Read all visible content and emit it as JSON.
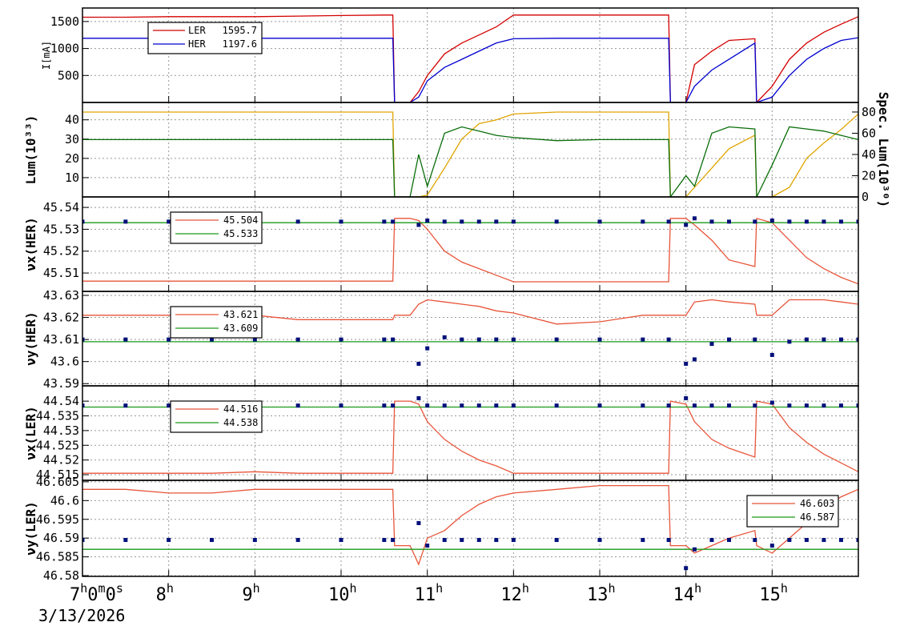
{
  "chart_data": [
    {
      "type": "line",
      "ylabel": "I[mA]",
      "legend": "upper left",
      "grid": true,
      "x": [
        7,
        7.5,
        8,
        8.5,
        9,
        9.5,
        10,
        10.5,
        10.6,
        10.62,
        10.8,
        10.9,
        11,
        11.2,
        11.4,
        11.6,
        11.8,
        12,
        12.5,
        13,
        13.5,
        13.8,
        13.82,
        14,
        14.1,
        14.3,
        14.5,
        14.8,
        14.82,
        15,
        15.2,
        15.4,
        15.6,
        15.8,
        16
      ],
      "xlim": [
        7,
        16
      ],
      "xticks": [
        7,
        8,
        9,
        10,
        11,
        12,
        13,
        14,
        15
      ],
      "ylim": [
        0,
        1750
      ],
      "yticks": [
        500,
        1000,
        1500
      ],
      "series": [
        {
          "name": "LER",
          "legend_value": 1595.7,
          "color": "#d40000",
          "style": "line",
          "values": [
            1580,
            1580,
            1590,
            1590,
            1590,
            1600,
            1610,
            1620,
            1620,
            0,
            0,
            200,
            500,
            900,
            1100,
            1250,
            1400,
            1620,
            1620,
            1620,
            1620,
            1620,
            0,
            0,
            700,
            950,
            1150,
            1180,
            0,
            300,
            800,
            1100,
            1300,
            1450,
            1590
          ]
        },
        {
          "name": "HER",
          "legend_value": 1197.6,
          "color": "#0000d0",
          "style": "line",
          "values": [
            1190,
            1190,
            1190,
            1190,
            1190,
            1190,
            1190,
            1190,
            1190,
            0,
            0,
            100,
            400,
            650,
            800,
            950,
            1100,
            1180,
            1190,
            1190,
            1190,
            1190,
            0,
            0,
            300,
            600,
            800,
            1100,
            0,
            100,
            500,
            800,
            1000,
            1150,
            1200
          ]
        }
      ]
    },
    {
      "type": "line",
      "ylabel": "Lum(10³³)",
      "y2label": "Spec. Lum(10³⁰)",
      "grid": true,
      "x": [
        7,
        7.5,
        8,
        8.5,
        9,
        9.5,
        10,
        10.5,
        10.6,
        10.62,
        10.8,
        10.9,
        11,
        11.2,
        11.4,
        11.6,
        11.8,
        12,
        12.5,
        13,
        13.5,
        13.8,
        13.82,
        14,
        14.1,
        14.3,
        14.5,
        14.8,
        14.82,
        15,
        15.2,
        15.4,
        15.6,
        15.8,
        16
      ],
      "xlim": [
        7,
        16
      ],
      "xticks": [
        7,
        8,
        9,
        10,
        11,
        12,
        13,
        14,
        15
      ],
      "ylim": [
        0,
        49
      ],
      "yticks": [
        10,
        20,
        30,
        40
      ],
      "y2lim": [
        0,
        89
      ],
      "y2ticks": [
        0,
        20,
        40,
        60,
        80
      ],
      "series": [
        {
          "color": "#e0a400",
          "style": "line",
          "values": [
            44,
            44,
            44,
            44,
            44,
            44,
            44,
            44,
            44,
            0,
            0,
            0,
            1,
            15,
            30,
            38,
            40,
            43,
            44,
            44,
            44,
            44,
            0,
            0,
            5,
            15,
            25,
            32,
            0,
            0,
            5,
            20,
            28,
            35,
            43
          ]
        },
        {
          "color": "#0a6e0a",
          "style": "line",
          "axis": "y2",
          "values": [
            54,
            54,
            54,
            54,
            54,
            54,
            54,
            54,
            54,
            0,
            0,
            40,
            10,
            60,
            66,
            62,
            58,
            56,
            53,
            54,
            54,
            54,
            0,
            20,
            10,
            60,
            66,
            64,
            0,
            30,
            66,
            64,
            62,
            58,
            54
          ]
        }
      ]
    },
    {
      "type": "line",
      "ylabel": "νx(HER)",
      "legend": "upper left",
      "grid": true,
      "x": [
        7,
        7.5,
        8,
        8.5,
        9,
        9.5,
        10,
        10.5,
        10.6,
        10.62,
        10.8,
        10.9,
        11,
        11.2,
        11.4,
        11.6,
        11.8,
        12,
        12.5,
        13,
        13.5,
        13.8,
        13.82,
        14,
        14.1,
        14.3,
        14.5,
        14.8,
        14.82,
        15,
        15.2,
        15.4,
        15.6,
        15.8,
        16
      ],
      "xlim": [
        7,
        16
      ],
      "xticks": [
        7,
        8,
        9,
        10,
        11,
        12,
        13,
        14,
        15
      ],
      "ylim": [
        45.5016,
        45.5448
      ],
      "yticks": [
        45.51,
        45.52,
        45.53,
        45.54
      ],
      "series": [
        {
          "name": "45.504",
          "color": "#e8553a",
          "style": "line",
          "values": [
            45.5063,
            45.5063,
            45.5063,
            45.5063,
            45.5063,
            45.5063,
            45.5063,
            45.5063,
            45.5063,
            45.535,
            45.535,
            45.534,
            45.53,
            45.52,
            45.515,
            45.512,
            45.509,
            45.506,
            45.506,
            45.506,
            45.506,
            45.506,
            45.535,
            45.535,
            45.532,
            45.525,
            45.516,
            45.513,
            45.535,
            45.533,
            45.525,
            45.517,
            45.512,
            45.508,
            45.505
          ]
        },
        {
          "name": "45.533",
          "color": "#1a9a1a",
          "style": "line",
          "values": [
            45.533,
            45.533,
            45.533,
            45.533,
            45.533,
            45.533,
            45.533,
            45.533,
            45.533,
            45.533,
            45.533,
            45.533,
            45.533,
            45.533,
            45.533,
            45.533,
            45.533,
            45.533,
            45.533,
            45.533,
            45.533,
            45.533,
            45.533,
            45.533,
            45.533,
            45.533,
            45.533,
            45.533,
            45.533,
            45.533,
            45.533,
            45.533,
            45.533,
            45.533,
            45.533
          ]
        },
        {
          "color": "#00107a",
          "style": "points",
          "values": [
            45.5335,
            45.5335,
            45.5335,
            45.5335,
            45.5335,
            45.5335,
            45.5335,
            45.5335,
            45.5335,
            null,
            null,
            45.532,
            45.534,
            45.5335,
            45.5335,
            45.5335,
            45.5335,
            45.5335,
            45.5335,
            45.5335,
            45.5335,
            45.5335,
            null,
            45.532,
            45.535,
            45.5335,
            45.5335,
            45.5335,
            null,
            45.534,
            45.5335,
            45.5335,
            45.5335,
            45.5335,
            45.5335
          ]
        }
      ]
    },
    {
      "type": "line",
      "ylabel": "νy(HER)",
      "legend": "upper left",
      "grid": true,
      "x": [
        7,
        7.5,
        8,
        8.5,
        9,
        9.5,
        10,
        10.5,
        10.6,
        10.62,
        10.8,
        10.9,
        11,
        11.2,
        11.4,
        11.6,
        11.8,
        12,
        12.5,
        13,
        13.5,
        13.8,
        13.82,
        14,
        14.1,
        14.3,
        14.5,
        14.8,
        14.82,
        15,
        15.2,
        15.4,
        15.6,
        15.8,
        16
      ],
      "xlim": [
        7,
        16
      ],
      "xticks": [
        7,
        8,
        9,
        10,
        11,
        12,
        13,
        14,
        15
      ],
      "ylim": [
        43.589,
        43.6318
      ],
      "yticks": [
        43.59,
        43.6,
        43.61,
        43.62,
        43.63
      ],
      "series": [
        {
          "name": "43.621",
          "color": "#e8553a",
          "style": "line",
          "values": [
            43.621,
            43.621,
            43.621,
            43.621,
            43.621,
            43.619,
            43.619,
            43.619,
            43.619,
            43.621,
            43.621,
            43.626,
            43.628,
            43.627,
            43.626,
            43.625,
            43.623,
            43.622,
            43.617,
            43.618,
            43.621,
            43.621,
            43.621,
            43.621,
            43.627,
            43.628,
            43.627,
            43.626,
            43.621,
            43.621,
            43.628,
            43.628,
            43.628,
            43.627,
            43.626
          ]
        },
        {
          "name": "43.609",
          "color": "#1a9a1a",
          "style": "line",
          "values": [
            43.609,
            43.609,
            43.609,
            43.609,
            43.609,
            43.609,
            43.609,
            43.609,
            43.609,
            43.609,
            43.609,
            43.609,
            43.609,
            43.609,
            43.609,
            43.609,
            43.609,
            43.609,
            43.609,
            43.609,
            43.609,
            43.609,
            43.609,
            43.609,
            43.609,
            43.609,
            43.609,
            43.609,
            43.609,
            43.609,
            43.609,
            43.609,
            43.609,
            43.609,
            43.609
          ]
        },
        {
          "color": "#00107a",
          "style": "points",
          "values": [
            43.61,
            43.61,
            43.61,
            43.61,
            43.61,
            43.61,
            43.61,
            43.61,
            43.61,
            null,
            null,
            43.599,
            43.606,
            43.611,
            43.61,
            43.61,
            43.61,
            43.61,
            43.61,
            43.61,
            43.61,
            43.61,
            null,
            43.599,
            43.601,
            43.608,
            43.61,
            43.61,
            null,
            43.603,
            43.609,
            43.61,
            43.61,
            43.61,
            43.61
          ]
        }
      ]
    },
    {
      "type": "line",
      "ylabel": "νx(LER)",
      "legend": "upper left",
      "grid": true,
      "x": [
        7,
        7.5,
        8,
        8.5,
        9,
        9.5,
        10,
        10.5,
        10.6,
        10.62,
        10.8,
        10.9,
        11,
        11.2,
        11.4,
        11.6,
        11.8,
        12,
        12.5,
        13,
        13.5,
        13.8,
        13.82,
        14,
        14.1,
        14.3,
        14.5,
        14.8,
        14.82,
        15,
        15.2,
        15.4,
        15.6,
        15.8,
        16
      ],
      "xlim": [
        7,
        16
      ],
      "xticks": [
        7,
        8,
        9,
        10,
        11,
        12,
        13,
        14,
        15
      ],
      "ylim": [
        44.5131,
        44.5452
      ],
      "yticks": [
        44.515,
        44.52,
        44.525,
        44.53,
        44.535,
        44.54
      ],
      "series": [
        {
          "name": "44.516",
          "color": "#e8553a",
          "style": "line",
          "values": [
            44.5155,
            44.5155,
            44.5155,
            44.5155,
            44.516,
            44.5155,
            44.5155,
            44.5155,
            44.5155,
            44.54,
            44.54,
            44.539,
            44.533,
            44.527,
            44.523,
            44.52,
            44.518,
            44.5155,
            44.5155,
            44.5155,
            44.5155,
            44.5155,
            44.54,
            44.539,
            44.533,
            44.527,
            44.524,
            44.521,
            44.54,
            44.539,
            44.531,
            44.526,
            44.522,
            44.519,
            44.516
          ]
        },
        {
          "name": "44.538",
          "color": "#1a9a1a",
          "style": "line",
          "values": [
            44.538,
            44.538,
            44.538,
            44.538,
            44.538,
            44.538,
            44.538,
            44.538,
            44.538,
            44.538,
            44.538,
            44.538,
            44.538,
            44.538,
            44.538,
            44.538,
            44.538,
            44.538,
            44.538,
            44.538,
            44.538,
            44.538,
            44.538,
            44.538,
            44.538,
            44.538,
            44.538,
            44.538,
            44.538,
            44.538,
            44.538,
            44.538,
            44.538,
            44.538,
            44.538
          ]
        },
        {
          "color": "#00107a",
          "style": "points",
          "values": [
            44.5385,
            44.5385,
            44.5385,
            44.5385,
            44.5385,
            44.5385,
            44.5385,
            44.5385,
            44.5385,
            null,
            null,
            44.541,
            44.5385,
            44.5385,
            44.5385,
            44.5385,
            44.5385,
            44.5385,
            44.5385,
            44.5385,
            44.5385,
            44.5385,
            null,
            44.541,
            44.5385,
            44.5385,
            44.5385,
            44.5385,
            null,
            44.5395,
            44.5385,
            44.5385,
            44.5385,
            44.5385,
            44.5385
          ]
        }
      ]
    },
    {
      "type": "line",
      "ylabel": "νy(LER)",
      "legend": "upper right",
      "grid": true,
      "xlabel": "3/13/2026",
      "x": [
        7,
        7.5,
        8,
        8.5,
        9,
        9.5,
        10,
        10.5,
        10.6,
        10.62,
        10.8,
        10.9,
        11,
        11.2,
        11.4,
        11.6,
        11.8,
        12,
        12.5,
        13,
        13.5,
        13.8,
        13.82,
        14,
        14.1,
        14.3,
        14.5,
        14.8,
        14.82,
        15,
        15.2,
        15.4,
        15.6,
        15.8,
        16
      ],
      "xlim": [
        7,
        16
      ],
      "xticks": [
        {
          "value": 7,
          "label": "7h0m0s"
        },
        {
          "value": 8,
          "label": "8h"
        },
        {
          "value": 9,
          "label": "9h"
        },
        {
          "value": 10,
          "label": "10h"
        },
        {
          "value": 11,
          "label": "11h"
        },
        {
          "value": 12,
          "label": "12h"
        },
        {
          "value": 13,
          "label": "13h"
        },
        {
          "value": 14,
          "label": "14h"
        },
        {
          "value": 15,
          "label": "15h"
        }
      ],
      "ylim": [
        46.5798,
        46.6054
      ],
      "yticks": [
        46.58,
        46.585,
        46.59,
        46.595,
        46.6,
        46.605
      ],
      "series": [
        {
          "name": "46.603",
          "color": "#e8553a",
          "style": "line",
          "values": [
            46.603,
            46.603,
            46.602,
            46.602,
            46.603,
            46.603,
            46.603,
            46.603,
            46.603,
            46.588,
            46.588,
            46.583,
            46.59,
            46.592,
            46.596,
            46.599,
            46.601,
            46.602,
            46.603,
            46.604,
            46.604,
            46.604,
            46.588,
            46.588,
            46.586,
            46.588,
            46.59,
            46.592,
            46.588,
            46.586,
            46.59,
            46.594,
            46.598,
            46.601,
            46.603
          ]
        },
        {
          "name": "46.587",
          "color": "#1a9a1a",
          "style": "line",
          "values": [
            46.587,
            46.587,
            46.587,
            46.587,
            46.587,
            46.587,
            46.587,
            46.587,
            46.587,
            46.587,
            46.587,
            46.587,
            46.587,
            46.587,
            46.587,
            46.587,
            46.587,
            46.587,
            46.587,
            46.587,
            46.587,
            46.587,
            46.587,
            46.587,
            46.587,
            46.587,
            46.587,
            46.587,
            46.587,
            46.587,
            46.587,
            46.587,
            46.587,
            46.587,
            46.587
          ]
        },
        {
          "color": "#00107a",
          "style": "points",
          "values": [
            46.5895,
            46.5895,
            46.5895,
            46.5895,
            46.5895,
            46.5895,
            46.5895,
            46.5895,
            46.5895,
            null,
            null,
            46.594,
            46.588,
            46.5895,
            46.5895,
            46.5895,
            46.5895,
            46.5895,
            46.5895,
            46.5895,
            46.5895,
            46.5895,
            null,
            46.582,
            46.587,
            46.5895,
            46.5895,
            46.5895,
            null,
            46.588,
            46.5895,
            46.5895,
            46.5895,
            46.5895,
            46.5895
          ]
        }
      ]
    }
  ]
}
